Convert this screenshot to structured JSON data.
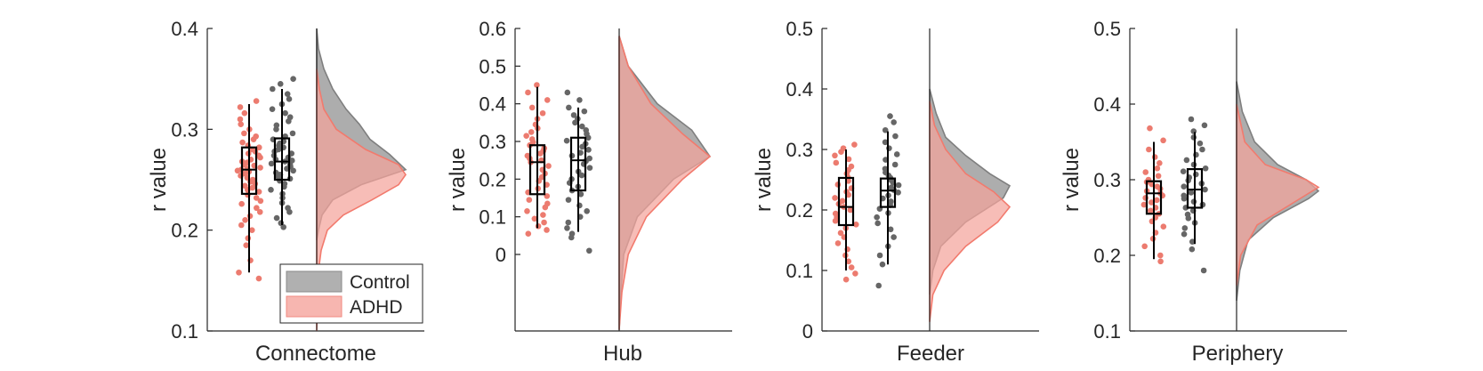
{
  "chart_data": [
    {
      "type": "raincloud",
      "xlabel": "Connectome",
      "ylabel": "r value",
      "ylim": [
        0.1,
        0.4
      ],
      "yticks": [
        "0.1",
        "0.2",
        "0.3",
        "0.4"
      ],
      "yticks_values": [
        0.1,
        0.2,
        0.3,
        0.4
      ],
      "series": [
        {
          "name": "ADHD",
          "box": {
            "min": 0.158,
            "q1": 0.236,
            "median": 0.26,
            "q3": 0.282,
            "max": 0.325
          },
          "points": [
            0.152,
            0.158,
            0.17,
            0.185,
            0.192,
            0.2,
            0.205,
            0.21,
            0.214,
            0.218,
            0.222,
            0.226,
            0.229,
            0.232,
            0.235,
            0.238,
            0.24,
            0.242,
            0.244,
            0.246,
            0.248,
            0.25,
            0.252,
            0.254,
            0.256,
            0.258,
            0.259,
            0.26,
            0.261,
            0.262,
            0.264,
            0.265,
            0.267,
            0.268,
            0.27,
            0.272,
            0.274,
            0.276,
            0.278,
            0.28,
            0.282,
            0.284,
            0.287,
            0.29,
            0.293,
            0.296,
            0.3,
            0.305,
            0.31,
            0.316,
            0.322,
            0.328
          ],
          "density": [
            [
              0.1,
              0.0
            ],
            [
              0.16,
              0.02
            ],
            [
              0.18,
              0.05
            ],
            [
              0.2,
              0.12
            ],
            [
              0.215,
              0.3
            ],
            [
              0.23,
              0.62
            ],
            [
              0.245,
              0.92
            ],
            [
              0.255,
              1.0
            ],
            [
              0.265,
              0.92
            ],
            [
              0.28,
              0.55
            ],
            [
              0.3,
              0.22
            ],
            [
              0.32,
              0.08
            ],
            [
              0.34,
              0.03
            ],
            [
              0.36,
              0.0
            ]
          ]
        },
        {
          "name": "Control",
          "box": {
            "min": 0.205,
            "q1": 0.25,
            "median": 0.268,
            "q3": 0.291,
            "max": 0.34
          },
          "points": [
            0.16,
            0.203,
            0.207,
            0.212,
            0.218,
            0.222,
            0.227,
            0.232,
            0.236,
            0.24,
            0.243,
            0.246,
            0.249,
            0.251,
            0.253,
            0.255,
            0.257,
            0.259,
            0.261,
            0.263,
            0.265,
            0.266,
            0.268,
            0.269,
            0.27,
            0.272,
            0.274,
            0.276,
            0.278,
            0.28,
            0.282,
            0.284,
            0.286,
            0.288,
            0.29,
            0.293,
            0.296,
            0.3,
            0.304,
            0.308,
            0.312,
            0.316,
            0.32,
            0.325,
            0.33,
            0.335,
            0.34,
            0.345,
            0.35
          ],
          "density": [
            [
              0.19,
              0.0
            ],
            [
              0.2,
              0.02
            ],
            [
              0.215,
              0.06
            ],
            [
              0.23,
              0.18
            ],
            [
              0.245,
              0.5
            ],
            [
              0.26,
              1.0
            ],
            [
              0.275,
              0.82
            ],
            [
              0.29,
              0.6
            ],
            [
              0.305,
              0.48
            ],
            [
              0.32,
              0.33
            ],
            [
              0.34,
              0.18
            ],
            [
              0.36,
              0.08
            ],
            [
              0.38,
              0.02
            ],
            [
              0.4,
              0.0
            ]
          ]
        }
      ]
    },
    {
      "type": "raincloud",
      "xlabel": "Hub",
      "ylabel": "r value",
      "ylim": [
        -0.2,
        0.6
      ],
      "yticks": [
        "0",
        "0.1",
        "0.2",
        "0.3",
        "0.4",
        "0.5",
        "0.6"
      ],
      "yticks_values": [
        0,
        0.1,
        0.2,
        0.3,
        0.4,
        0.5,
        0.6
      ],
      "series": [
        {
          "name": "ADHD",
          "box": {
            "min": 0.07,
            "q1": 0.16,
            "median": 0.245,
            "q3": 0.29,
            "max": 0.445
          },
          "points": [
            0.055,
            0.065,
            0.075,
            0.085,
            0.095,
            0.105,
            0.115,
            0.125,
            0.135,
            0.145,
            0.155,
            0.165,
            0.175,
            0.185,
            0.195,
            0.205,
            0.215,
            0.225,
            0.235,
            0.245,
            0.25,
            0.255,
            0.262,
            0.268,
            0.275,
            0.282,
            0.29,
            0.298,
            0.306,
            0.315,
            0.325,
            0.335,
            0.345,
            0.36,
            0.375,
            0.39,
            0.41,
            0.43,
            0.45
          ],
          "density": [
            [
              -0.2,
              0.0
            ],
            [
              -0.1,
              0.03
            ],
            [
              0.0,
              0.1
            ],
            [
              0.1,
              0.3
            ],
            [
              0.2,
              0.7
            ],
            [
              0.26,
              1.0
            ],
            [
              0.32,
              0.7
            ],
            [
              0.4,
              0.35
            ],
            [
              0.5,
              0.1
            ],
            [
              0.58,
              0.0
            ]
          ]
        },
        {
          "name": "Control",
          "box": {
            "min": 0.06,
            "q1": 0.17,
            "median": 0.25,
            "q3": 0.31,
            "max": 0.39
          },
          "points": [
            0.01,
            0.045,
            0.055,
            0.07,
            0.085,
            0.1,
            0.115,
            0.13,
            0.145,
            0.16,
            0.17,
            0.18,
            0.19,
            0.2,
            0.21,
            0.22,
            0.23,
            0.24,
            0.248,
            0.255,
            0.262,
            0.27,
            0.278,
            0.286,
            0.294,
            0.302,
            0.31,
            0.32,
            0.33,
            0.34,
            0.35,
            0.36,
            0.37,
            0.38,
            0.39,
            0.41,
            0.43
          ],
          "density": [
            [
              -0.2,
              0.0
            ],
            [
              -0.1,
              0.02
            ],
            [
              0.0,
              0.05
            ],
            [
              0.1,
              0.2
            ],
            [
              0.2,
              0.6
            ],
            [
              0.26,
              1.0
            ],
            [
              0.33,
              0.8
            ],
            [
              0.4,
              0.42
            ],
            [
              0.5,
              0.1
            ],
            [
              0.58,
              0.0
            ]
          ]
        }
      ]
    },
    {
      "type": "raincloud",
      "xlabel": "Feeder",
      "ylabel": "r value",
      "ylim": [
        0,
        0.5
      ],
      "yticks": [
        "0",
        "0.1",
        "0.2",
        "0.3",
        "0.4",
        "0.5"
      ],
      "yticks_values": [
        0,
        0.1,
        0.2,
        0.3,
        0.4,
        0.5
      ],
      "series": [
        {
          "name": "ADHD",
          "box": {
            "min": 0.1,
            "q1": 0.175,
            "median": 0.205,
            "q3": 0.253,
            "max": 0.3
          },
          "points": [
            0.085,
            0.095,
            0.105,
            0.115,
            0.125,
            0.135,
            0.145,
            0.155,
            0.162,
            0.17,
            0.176,
            0.182,
            0.188,
            0.194,
            0.2,
            0.205,
            0.21,
            0.215,
            0.22,
            0.225,
            0.23,
            0.236,
            0.242,
            0.248,
            0.254,
            0.26,
            0.266,
            0.272,
            0.278,
            0.284,
            0.29,
            0.296,
            0.302,
            0.308
          ],
          "density": [
            [
              0.015,
              0.0
            ],
            [
              0.06,
              0.04
            ],
            [
              0.1,
              0.18
            ],
            [
              0.14,
              0.45
            ],
            [
              0.18,
              0.85
            ],
            [
              0.205,
              1.0
            ],
            [
              0.23,
              0.8
            ],
            [
              0.26,
              0.45
            ],
            [
              0.3,
              0.2
            ],
            [
              0.34,
              0.06
            ],
            [
              0.38,
              0.0
            ]
          ]
        },
        {
          "name": "Control",
          "box": {
            "min": 0.11,
            "q1": 0.205,
            "median": 0.232,
            "q3": 0.252,
            "max": 0.33
          },
          "points": [
            0.075,
            0.11,
            0.125,
            0.14,
            0.155,
            0.168,
            0.178,
            0.188,
            0.195,
            0.202,
            0.208,
            0.214,
            0.219,
            0.224,
            0.229,
            0.233,
            0.237,
            0.241,
            0.245,
            0.249,
            0.253,
            0.257,
            0.262,
            0.268,
            0.275,
            0.283,
            0.292,
            0.302,
            0.312,
            0.322,
            0.332,
            0.345,
            0.355
          ],
          "density": [
            [
              0.06,
              0.0
            ],
            [
              0.1,
              0.04
            ],
            [
              0.14,
              0.14
            ],
            [
              0.18,
              0.45
            ],
            [
              0.22,
              0.92
            ],
            [
              0.24,
              1.0
            ],
            [
              0.26,
              0.75
            ],
            [
              0.29,
              0.45
            ],
            [
              0.32,
              0.2
            ],
            [
              0.36,
              0.08
            ],
            [
              0.4,
              0.0
            ]
          ]
        }
      ]
    },
    {
      "type": "raincloud",
      "xlabel": "Periphery",
      "ylabel": "r value",
      "ylim": [
        0.1,
        0.5
      ],
      "yticks": [
        "0.1",
        "0.2",
        "0.3",
        "0.4",
        "0.5"
      ],
      "yticks_values": [
        0.1,
        0.2,
        0.3,
        0.4,
        0.5
      ],
      "series": [
        {
          "name": "ADHD",
          "box": {
            "min": 0.195,
            "q1": 0.255,
            "median": 0.282,
            "q3": 0.298,
            "max": 0.35
          },
          "points": [
            0.192,
            0.2,
            0.212,
            0.222,
            0.23,
            0.238,
            0.245,
            0.25,
            0.255,
            0.259,
            0.263,
            0.267,
            0.27,
            0.273,
            0.276,
            0.279,
            0.282,
            0.285,
            0.288,
            0.291,
            0.294,
            0.297,
            0.3,
            0.305,
            0.31,
            0.315,
            0.322,
            0.33,
            0.34,
            0.352,
            0.368
          ],
          "density": [
            [
              0.16,
              0.0
            ],
            [
              0.2,
              0.05
            ],
            [
              0.24,
              0.25
            ],
            [
              0.27,
              0.7
            ],
            [
              0.29,
              1.0
            ],
            [
              0.3,
              0.85
            ],
            [
              0.32,
              0.35
            ],
            [
              0.35,
              0.1
            ],
            [
              0.4,
              0.0
            ]
          ]
        },
        {
          "name": "Control",
          "box": {
            "min": 0.215,
            "q1": 0.263,
            "median": 0.287,
            "q3": 0.314,
            "max": 0.363
          },
          "points": [
            0.18,
            0.208,
            0.218,
            0.228,
            0.236,
            0.243,
            0.249,
            0.254,
            0.259,
            0.263,
            0.267,
            0.271,
            0.275,
            0.279,
            0.283,
            0.287,
            0.291,
            0.295,
            0.299,
            0.303,
            0.307,
            0.311,
            0.315,
            0.32,
            0.326,
            0.333,
            0.34,
            0.348,
            0.356,
            0.364,
            0.372,
            0.38
          ],
          "density": [
            [
              0.14,
              0.0
            ],
            [
              0.18,
              0.04
            ],
            [
              0.22,
              0.14
            ],
            [
              0.25,
              0.45
            ],
            [
              0.275,
              0.88
            ],
            [
              0.285,
              1.0
            ],
            [
              0.3,
              0.85
            ],
            [
              0.32,
              0.5
            ],
            [
              0.35,
              0.22
            ],
            [
              0.39,
              0.07
            ],
            [
              0.43,
              0.0
            ]
          ]
        }
      ]
    }
  ],
  "legend": {
    "items": [
      {
        "label": "Control",
        "fill": "#b0b0b0",
        "stroke": "#8a8a8a"
      },
      {
        "label": "ADHD",
        "fill": "#f7b6b0",
        "stroke": "#f08a80"
      }
    ]
  },
  "colors": {
    "adhd_point": "#ec7b6f",
    "control_point": "#666666",
    "adhd_cloud_fill": "#f4a49b",
    "adhd_cloud_stroke": "#f27a6d",
    "control_cloud_fill": "#a9a9a9",
    "control_cloud_stroke": "#7f7f7f",
    "axis": "#262626"
  }
}
